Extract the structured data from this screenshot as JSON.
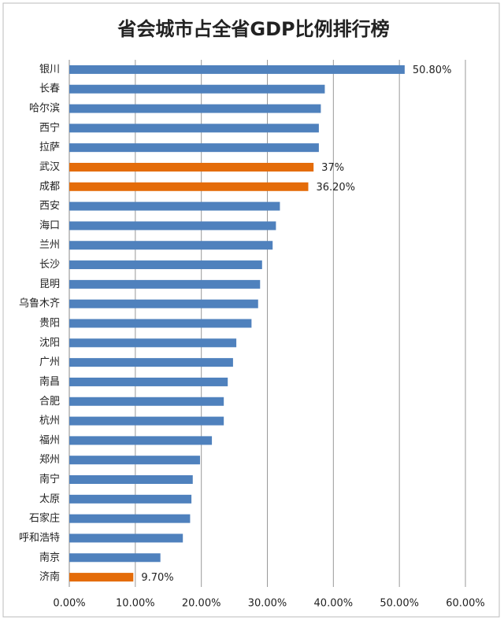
{
  "chart_data": {
    "type": "hbar",
    "title": "省会城市占全省GDP比例排行榜",
    "categories": [
      "银川",
      "长春",
      "哈尔滨",
      "西宁",
      "拉萨",
      "武汉",
      "成都",
      "西安",
      "海口",
      "兰州",
      "长沙",
      "昆明",
      "乌鲁木齐",
      "贵阳",
      "沈阳",
      "广州",
      "南昌",
      "合肥",
      "杭州",
      "福州",
      "郑州",
      "南宁",
      "太原",
      "石家庄",
      "呼和浩特",
      "南京",
      "济南"
    ],
    "values": [
      50.8,
      38.7,
      38.1,
      37.8,
      37.8,
      37,
      36.2,
      31.9,
      31.3,
      30.8,
      29.2,
      28.9,
      28.6,
      27.6,
      25.3,
      24.8,
      24.0,
      23.4,
      23.4,
      21.6,
      19.8,
      18.7,
      18.5,
      18.3,
      17.2,
      13.8,
      9.7
    ],
    "value_labels": [
      "50.80%",
      null,
      null,
      null,
      null,
      "37%",
      "36.20%",
      null,
      null,
      null,
      null,
      null,
      null,
      null,
      null,
      null,
      null,
      null,
      null,
      null,
      null,
      null,
      null,
      null,
      null,
      null,
      "9.70%"
    ],
    "colors": [
      "#4f81bd",
      "#4f81bd",
      "#4f81bd",
      "#4f81bd",
      "#4f81bd",
      "#e46c0a",
      "#e46c0a",
      "#4f81bd",
      "#4f81bd",
      "#4f81bd",
      "#4f81bd",
      "#4f81bd",
      "#4f81bd",
      "#4f81bd",
      "#4f81bd",
      "#4f81bd",
      "#4f81bd",
      "#4f81bd",
      "#4f81bd",
      "#4f81bd",
      "#4f81bd",
      "#4f81bd",
      "#4f81bd",
      "#4f81bd",
      "#4f81bd",
      "#4f81bd",
      "#e46c0a"
    ],
    "xlim": [
      0,
      60
    ],
    "xticks": [
      {
        "value": 0,
        "label": "0.00%"
      },
      {
        "value": 10,
        "label": "10.00%"
      },
      {
        "value": 20,
        "label": "20.00%"
      },
      {
        "value": 30,
        "label": "30.00%"
      },
      {
        "value": 40,
        "label": "40.00%"
      },
      {
        "value": 50,
        "label": "50.00%"
      },
      {
        "value": 60,
        "label": "60.00%"
      }
    ],
    "grid": true
  }
}
